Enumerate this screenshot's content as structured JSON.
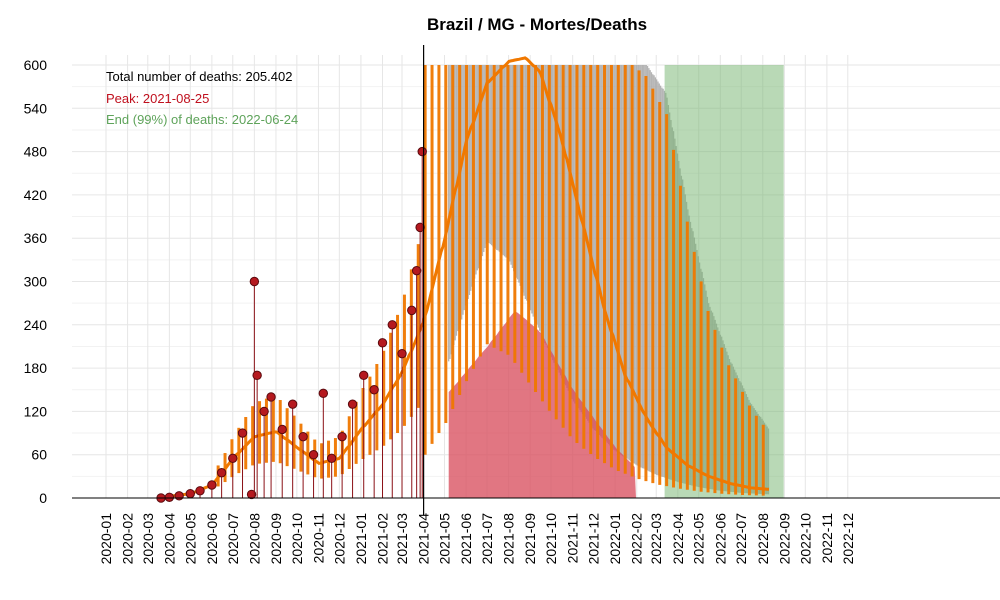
{
  "chart_data": {
    "type": "line",
    "title": "Brazil / MG - Mortes/Deaths",
    "xlabel": "",
    "ylabel": "",
    "ylim": [
      0,
      600
    ],
    "y_ticks": [
      "0",
      "60",
      "120",
      "180",
      "240",
      "300",
      "360",
      "420",
      "480",
      "540",
      "600"
    ],
    "x_ticks": [
      "2020-01",
      "2020-02",
      "2020-03",
      "2020-04",
      "2020-05",
      "2020-06",
      "2020-07",
      "2020-08",
      "2020-09",
      "2020-10",
      "2020-11",
      "2020-12",
      "2021-01",
      "2021-02",
      "2021-03",
      "2021-04",
      "2021-05",
      "2021-06",
      "2021-07",
      "2021-08",
      "2021-09",
      "2021-10",
      "2021-11",
      "2021-12",
      "2022-01",
      "2022-02",
      "2022-03",
      "2022-04",
      "2022-05",
      "2022-06",
      "2022-07",
      "2022-08",
      "2022-09",
      "2022-10",
      "2022-11",
      "2022-12"
    ],
    "grid": true,
    "annotations": {
      "total": "Total number of deaths: 205.402",
      "peak": "Peak: 2021-08-25",
      "end": "End (99%) of deaths: 2022-06-24"
    },
    "colors": {
      "observed": "#b5191f",
      "fit": "#f07800",
      "peak_band": "#d9505f",
      "end_band": "#74b46e",
      "projection_grey": "#a8a8a8",
      "total_text": "#000000",
      "peak_text": "#c0101e",
      "end_text": "#5ea35a"
    },
    "vline_date": "2021-04-01",
    "peak_band": {
      "start": "2021-05-07",
      "end": "2022-01-31"
    },
    "end_band": {
      "start": "2022-03-13",
      "end": "2022-08-31"
    },
    "observed_deaths": [
      {
        "date": "2020-03-20",
        "deaths": 0
      },
      {
        "date": "2020-04-01",
        "deaths": 1
      },
      {
        "date": "2020-04-15",
        "deaths": 3
      },
      {
        "date": "2020-05-01",
        "deaths": 6
      },
      {
        "date": "2020-05-15",
        "deaths": 10
      },
      {
        "date": "2020-06-01",
        "deaths": 18
      },
      {
        "date": "2020-06-15",
        "deaths": 35
      },
      {
        "date": "2020-07-01",
        "deaths": 55
      },
      {
        "date": "2020-07-15",
        "deaths": 90
      },
      {
        "date": "2020-07-28",
        "deaths": 5
      },
      {
        "date": "2020-08-01",
        "deaths": 300
      },
      {
        "date": "2020-08-05",
        "deaths": 170
      },
      {
        "date": "2020-08-15",
        "deaths": 120
      },
      {
        "date": "2020-08-25",
        "deaths": 140
      },
      {
        "date": "2020-09-10",
        "deaths": 95
      },
      {
        "date": "2020-09-25",
        "deaths": 130
      },
      {
        "date": "2020-10-10",
        "deaths": 85
      },
      {
        "date": "2020-10-25",
        "deaths": 60
      },
      {
        "date": "2020-11-08",
        "deaths": 145
      },
      {
        "date": "2020-11-20",
        "deaths": 55
      },
      {
        "date": "2020-12-05",
        "deaths": 85
      },
      {
        "date": "2020-12-20",
        "deaths": 130
      },
      {
        "date": "2021-01-05",
        "deaths": 170
      },
      {
        "date": "2021-01-20",
        "deaths": 150
      },
      {
        "date": "2021-02-01",
        "deaths": 215
      },
      {
        "date": "2021-02-15",
        "deaths": 240
      },
      {
        "date": "2021-03-01",
        "deaths": 200
      },
      {
        "date": "2021-03-15",
        "deaths": 260
      },
      {
        "date": "2021-03-22",
        "deaths": 315
      },
      {
        "date": "2021-03-27",
        "deaths": 375
      },
      {
        "date": "2021-03-30",
        "deaths": 480
      }
    ],
    "fitted_deaths": [
      {
        "date": "2020-03-20",
        "deaths": 1
      },
      {
        "date": "2020-05-01",
        "deaths": 6
      },
      {
        "date": "2020-06-01",
        "deaths": 18
      },
      {
        "date": "2020-07-01",
        "deaths": 55
      },
      {
        "date": "2020-08-01",
        "deaths": 85
      },
      {
        "date": "2020-09-01",
        "deaths": 92
      },
      {
        "date": "2020-10-01",
        "deaths": 70
      },
      {
        "date": "2020-11-01",
        "deaths": 48
      },
      {
        "date": "2020-12-01",
        "deaths": 55
      },
      {
        "date": "2021-01-01",
        "deaths": 95
      },
      {
        "date": "2021-02-01",
        "deaths": 130
      },
      {
        "date": "2021-03-01",
        "deaths": 175
      },
      {
        "date": "2021-04-01",
        "deaths": 245
      },
      {
        "date": "2021-05-01",
        "deaths": 360
      },
      {
        "date": "2021-06-01",
        "deaths": 495
      },
      {
        "date": "2021-07-01",
        "deaths": 575
      },
      {
        "date": "2021-08-01",
        "deaths": 605
      },
      {
        "date": "2021-08-25",
        "deaths": 610
      },
      {
        "date": "2021-09-15",
        "deaths": 590
      },
      {
        "date": "2021-10-15",
        "deaths": 500
      },
      {
        "date": "2021-11-15",
        "deaths": 380
      },
      {
        "date": "2021-12-15",
        "deaths": 265
      },
      {
        "date": "2022-01-15",
        "deaths": 170
      },
      {
        "date": "2022-02-15",
        "deaths": 110
      },
      {
        "date": "2022-03-15",
        "deaths": 70
      },
      {
        "date": "2022-04-15",
        "deaths": 45
      },
      {
        "date": "2022-05-15",
        "deaths": 30
      },
      {
        "date": "2022-06-15",
        "deaths": 20
      },
      {
        "date": "2022-07-15",
        "deaths": 14
      },
      {
        "date": "2022-08-10",
        "deaths": 12
      }
    ],
    "upper_band": [
      {
        "date": "2021-04-01",
        "deaths": 600
      },
      {
        "date": "2021-12-15",
        "deaths": 600
      },
      {
        "date": "2022-01-15",
        "deaths": 600
      },
      {
        "date": "2022-02-15",
        "deaths": 600
      },
      {
        "date": "2022-03-15",
        "deaths": 560
      },
      {
        "date": "2022-04-15",
        "deaths": 400
      },
      {
        "date": "2022-05-15",
        "deaths": 270
      },
      {
        "date": "2022-06-15",
        "deaths": 190
      },
      {
        "date": "2022-07-15",
        "deaths": 130
      },
      {
        "date": "2022-08-10",
        "deaths": 95
      }
    ],
    "lower_band": [
      {
        "date": "2021-04-01",
        "deaths": 95
      },
      {
        "date": "2021-05-01",
        "deaths": 170
      },
      {
        "date": "2021-06-01",
        "deaths": 270
      },
      {
        "date": "2021-07-01",
        "deaths": 355
      },
      {
        "date": "2021-08-01",
        "deaths": 330
      },
      {
        "date": "2021-09-01",
        "deaths": 260
      },
      {
        "date": "2021-10-01",
        "deaths": 195
      },
      {
        "date": "2021-11-01",
        "deaths": 135
      },
      {
        "date": "2021-12-01",
        "deaths": 95
      },
      {
        "date": "2022-01-01",
        "deaths": 65
      },
      {
        "date": "2022-02-01",
        "deaths": 45
      },
      {
        "date": "2022-03-01",
        "deaths": 32
      },
      {
        "date": "2022-04-01",
        "deaths": 22
      },
      {
        "date": "2022-05-01",
        "deaths": 15
      },
      {
        "date": "2022-06-01",
        "deaths": 10
      },
      {
        "date": "2022-07-01",
        "deaths": 7
      },
      {
        "date": "2022-08-10",
        "deaths": 5
      }
    ],
    "lower_inner": [
      {
        "date": "2021-05-01",
        "deaths": 140
      },
      {
        "date": "2021-07-01",
        "deaths": 210
      },
      {
        "date": "2021-08-10",
        "deaths": 260
      },
      {
        "date": "2021-09-15",
        "deaths": 230
      },
      {
        "date": "2021-11-01",
        "deaths": 150
      },
      {
        "date": "2022-01-01",
        "deaths": 70
      },
      {
        "date": "2022-02-01",
        "deaths": 40
      }
    ]
  }
}
